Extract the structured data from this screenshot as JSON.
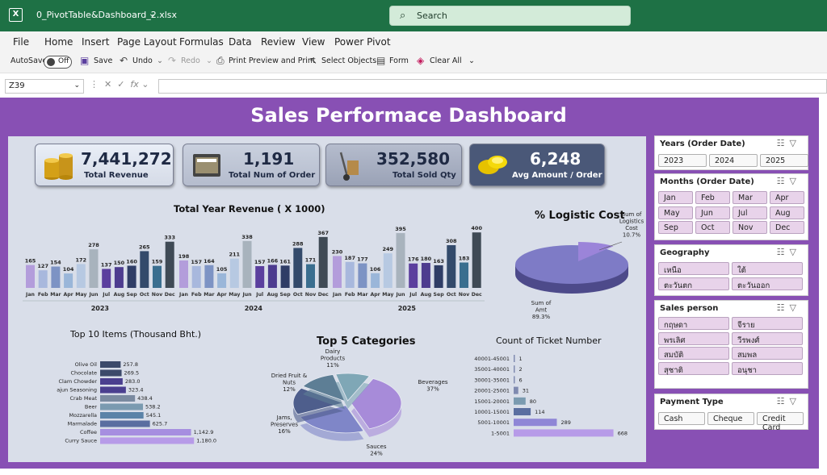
{
  "titlebar": {
    "filename": "0_PivotTable&Dashboard_2.xlsx",
    "search_placeholder": "Search"
  },
  "menu": [
    "File",
    "Home",
    "Insert",
    "Page Layout",
    "Formulas",
    "Data",
    "Review",
    "View",
    "Power Pivot"
  ],
  "qat": {
    "autosave": "AutoSave",
    "toggle": "Off",
    "save": "Save",
    "undo": "Undo",
    "redo": "Redo",
    "print_preview": "Print Preview and Print",
    "select_objects": "Select Objects",
    "form": "Form",
    "clear_all": "Clear All"
  },
  "formula_bar": {
    "name_box": "Z39",
    "fx": "fx",
    "formula": ""
  },
  "dashboard": {
    "title": "Sales Performace Dashboard",
    "kpis": [
      {
        "value": "7,441,272",
        "label": "Total Revenue",
        "icon": "coins-icon"
      },
      {
        "value": "1,191",
        "label": "Total Num of Order",
        "icon": "folder-icon"
      },
      {
        "value": "352,580",
        "label": "Total Sold Qty",
        "icon": "hand-truck-icon"
      },
      {
        "value": "6,248",
        "label": "Avg Amount / Order",
        "icon": "gold-ingots-icon"
      }
    ],
    "colors": {
      "panel": "#d9dee9",
      "sheet": "#8850b4",
      "slicer_selected": "#e8d3ea"
    }
  },
  "chart_data": [
    {
      "type": "bar",
      "title": "Total Year Revenue ( X 1000)",
      "categories": [
        "Jan",
        "Feb",
        "Mar",
        "Apr",
        "May",
        "Jun",
        "Jul",
        "Aug",
        "Sep",
        "Oct",
        "Nov",
        "Dec"
      ],
      "groups": [
        "2023",
        "2024",
        "2025"
      ],
      "series": [
        {
          "name": "2023",
          "values": [
            165,
            127,
            154,
            104,
            172,
            278,
            137,
            150,
            160,
            265,
            159,
            333
          ]
        },
        {
          "name": "2024",
          "values": [
            198,
            157,
            164,
            105,
            211,
            338,
            157,
            166,
            161,
            288,
            171,
            367
          ]
        },
        {
          "name": "2025",
          "values": [
            230,
            187,
            177,
            106,
            249,
            395,
            176,
            180,
            163,
            308,
            183,
            400
          ]
        }
      ],
      "bar_colors": [
        "#b39ddb",
        "#a8b8dd",
        "#7d93c4",
        "#9ab6d9",
        "#b7c9e2",
        "#a8b3bd",
        "#5b3f9e",
        "#4d3c8f",
        "#2f3d66",
        "#334a6b",
        "#3a6e8f",
        "#3f4a55"
      ]
    },
    {
      "type": "pie",
      "title": "% Logistic Cost",
      "categories": [
        "Sum of Logistics Cost",
        "Sum of Amt"
      ],
      "values": [
        10.7,
        89.3
      ],
      "labels": [
        "Sum of\nLogistics\nCost\n10.7%",
        "Sum of\nAmt\n89.3%"
      ]
    },
    {
      "type": "bar",
      "title": "Top 10 Items (Thousand Bht.)",
      "categories": [
        "Olive Oil",
        "Chocolate",
        "Clam Chowder",
        "Cajun Seasoning",
        "Crab Meat",
        "Beer",
        "Mozzarella",
        "Marmalade",
        "Coffee",
        "Curry Sauce"
      ],
      "values": [
        257.8,
        269.5,
        283.0,
        323.4,
        438.4,
        538.2,
        545.1,
        625.7,
        1142.9,
        1180.0
      ],
      "value_labels": [
        "257.8",
        "269.5",
        "283.0",
        "323.4",
        "438.4",
        "538.2",
        "545.1",
        "625.7",
        "1,142.9",
        "1,180.0"
      ],
      "bar_colors": [
        "#3c4a6a",
        "#3c4a6a",
        "#4a3f8f",
        "#4a3f8f",
        "#7a8aa0",
        "#7a9ab0",
        "#5b83a8",
        "#5a6ea0",
        "#a68ee0",
        "#b79be8"
      ]
    },
    {
      "type": "pie",
      "title": "Top 5 Categories",
      "categories": [
        "Beverages",
        "Sauces",
        "Jams, Preserves",
        "Dried Fruit & Nuts",
        "Dairy Products"
      ],
      "values": [
        37,
        24,
        16,
        12,
        11
      ],
      "labels": [
        "Beverages\n37%",
        "Sauces\n24%",
        "Jams,\nPreserves\n16%",
        "Dried Fruit &\nNuts\n12%",
        "Dairy\nProducts\n11%"
      ],
      "colors": [
        "#a78bd9",
        "#7f86c8",
        "#4e5e8c",
        "#5d7e95",
        "#7fa7b6"
      ]
    },
    {
      "type": "bar",
      "title": "Count of Ticket Number",
      "categories": [
        "40001-45001",
        "35001-40001",
        "30001-35001",
        "20001-25001",
        "15001-20001",
        "10001-15001",
        "5001-10001",
        "1-5001"
      ],
      "values": [
        1,
        2,
        6,
        31,
        80,
        114,
        289,
        668
      ],
      "bar_colors": [
        "#7f8ab0",
        "#7f8ab0",
        "#7f8ab0",
        "#7f8ab0",
        "#7a9ab0",
        "#5a6ea0",
        "#8f86d6",
        "#b79be8"
      ]
    }
  ],
  "slicers": [
    {
      "title": "Years (Order Date)",
      "items": [
        "2023",
        "2024",
        "2025"
      ],
      "cols": 3
    },
    {
      "title": "Months (Order Date)",
      "items": [
        "Jan",
        "Feb",
        "Mar",
        "Apr",
        "May",
        "Jun",
        "Jul",
        "Aug",
        "Sep",
        "Oct",
        "Nov",
        "Dec"
      ],
      "cols": 4
    },
    {
      "title": "Geography",
      "items": [
        "เหนือ",
        "ใต้",
        "ตะวันตก",
        "ตะวันออก"
      ],
      "cols": 2
    },
    {
      "title": "Sales person",
      "items": [
        "กฤษดา",
        "จีราย",
        "พรเลิศ",
        "วีรพงศ์",
        "สมบัติ",
        "สมพล",
        "สุชาติ",
        "อนุชา"
      ],
      "cols": 2
    },
    {
      "title": "Payment Type",
      "items": [
        "Cash",
        "Cheque",
        "Credit Card"
      ],
      "cols": 3
    }
  ]
}
